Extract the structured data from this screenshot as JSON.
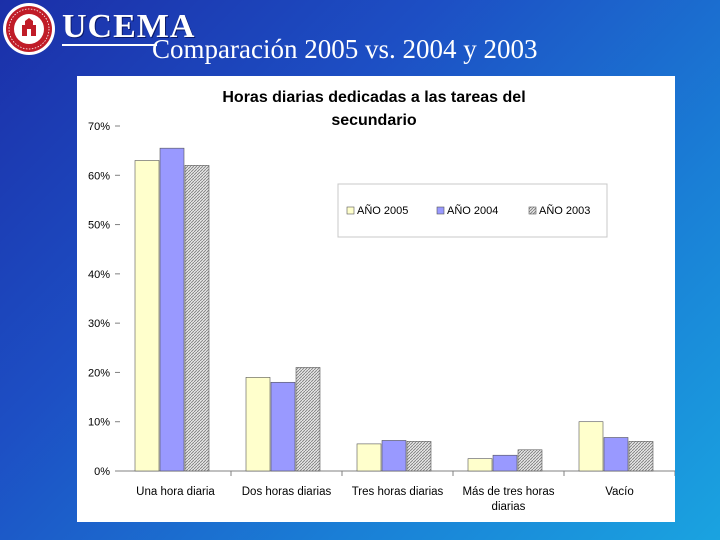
{
  "header": {
    "brand": "UCEMA",
    "title": "Comparación 2005 vs. 2004 y 2003",
    "seal_text": "UNIVERSIDAD DEL CEMA"
  },
  "colors": {
    "s2005": "#ffffcc",
    "s2004": "#9999ff",
    "s2003": "#c0c0c0"
  },
  "chart_data": {
    "type": "bar",
    "title": "Horas diarias dedicadas a las tareas del secundario",
    "title_lines": [
      "Horas diarias dedicadas a las tareas del",
      "secundario"
    ],
    "categories": [
      "Una hora diaria",
      "Dos horas diarias",
      "Tres horas diarias",
      "Más de tres horas diarias",
      "Vacío"
    ],
    "category_lines": [
      [
        "Una hora diaria"
      ],
      [
        "Dos horas diarias"
      ],
      [
        "Tres horas diarias"
      ],
      [
        "Más de tres horas",
        "diarias"
      ],
      [
        "Vacío"
      ]
    ],
    "series": [
      {
        "name": "AÑO 2005",
        "values": [
          63,
          19,
          5.5,
          2.5,
          10
        ]
      },
      {
        "name": "AÑO 2004",
        "values": [
          65.5,
          18,
          6.2,
          3.2,
          6.8
        ]
      },
      {
        "name": "AÑO 2003",
        "values": [
          62,
          21,
          6,
          4.3,
          6
        ]
      }
    ],
    "yticks": [
      "0%",
      "10%",
      "20%",
      "30%",
      "40%",
      "50%",
      "60%",
      "70%"
    ],
    "ylim": [
      0,
      70
    ],
    "xlabel": "",
    "ylabel": "",
    "legend_position": "top-right"
  }
}
